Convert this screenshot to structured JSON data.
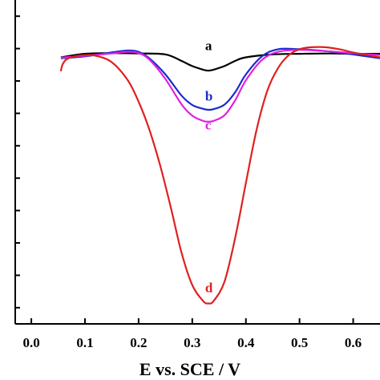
{
  "chart_data": {
    "type": "line",
    "xlabel": "E vs. SCE / V",
    "xlim": [
      -0.03,
      0.65
    ],
    "ylim": [
      0,
      1
    ],
    "x_ticks": [
      0.0,
      0.1,
      0.2,
      0.3,
      0.4,
      0.5,
      0.6
    ],
    "x_tick_labels": [
      "0.0",
      "0.1",
      "0.2",
      "0.3",
      "0.4",
      "0.5",
      "0.6"
    ],
    "y_ticks": [
      0.05,
      0.15,
      0.25,
      0.35,
      0.45,
      0.55,
      0.65,
      0.75,
      0.85,
      0.95
    ],
    "grid": false,
    "legend": "none",
    "series": [
      {
        "name": "a",
        "color": "#000000",
        "label_at": [
          0.33,
          0.845
        ],
        "x": [
          0.055,
          0.1,
          0.15,
          0.2,
          0.25,
          0.28,
          0.3,
          0.32,
          0.33,
          0.34,
          0.36,
          0.38,
          0.4,
          0.45,
          0.5,
          0.55,
          0.6,
          0.65
        ],
        "y": [
          0.823,
          0.834,
          0.836,
          0.835,
          0.832,
          0.812,
          0.796,
          0.785,
          0.782,
          0.785,
          0.796,
          0.812,
          0.823,
          0.832,
          0.834,
          0.835,
          0.834,
          0.834
        ]
      },
      {
        "name": "b",
        "color": "#1a2ad0",
        "label_at": [
          0.33,
          0.689
        ],
        "x": [
          0.055,
          0.1,
          0.15,
          0.18,
          0.2,
          0.22,
          0.25,
          0.28,
          0.3,
          0.32,
          0.33,
          0.34,
          0.36,
          0.38,
          0.4,
          0.43,
          0.46,
          0.5,
          0.55,
          0.6,
          0.65
        ],
        "y": [
          0.82,
          0.826,
          0.838,
          0.844,
          0.84,
          0.82,
          0.77,
          0.705,
          0.676,
          0.664,
          0.661,
          0.663,
          0.677,
          0.715,
          0.77,
          0.826,
          0.848,
          0.848,
          0.842,
          0.832,
          0.82
        ]
      },
      {
        "name": "c",
        "color": "#e020e0",
        "label_at": [
          0.33,
          0.6
        ],
        "x": [
          0.055,
          0.1,
          0.15,
          0.18,
          0.2,
          0.22,
          0.25,
          0.28,
          0.3,
          0.32,
          0.33,
          0.34,
          0.36,
          0.38,
          0.4,
          0.43,
          0.46,
          0.5,
          0.55,
          0.6,
          0.65
        ],
        "y": [
          0.822,
          0.828,
          0.835,
          0.84,
          0.836,
          0.816,
          0.756,
          0.678,
          0.643,
          0.627,
          0.624,
          0.627,
          0.644,
          0.69,
          0.752,
          0.815,
          0.84,
          0.846,
          0.842,
          0.836,
          0.83
        ]
      },
      {
        "name": "d",
        "color": "#e02020",
        "label_at": [
          0.33,
          0.098
        ],
        "x": [
          0.055,
          0.058,
          0.065,
          0.08,
          0.1,
          0.12,
          0.15,
          0.18,
          0.2,
          0.22,
          0.24,
          0.26,
          0.28,
          0.3,
          0.32,
          0.33,
          0.34,
          0.36,
          0.38,
          0.4,
          0.42,
          0.44,
          0.46,
          0.48,
          0.5,
          0.52,
          0.55,
          0.58,
          0.6,
          0.65
        ],
        "y": [
          0.78,
          0.8,
          0.816,
          0.826,
          0.83,
          0.828,
          0.808,
          0.752,
          0.686,
          0.6,
          0.49,
          0.36,
          0.22,
          0.12,
          0.071,
          0.063,
          0.071,
          0.13,
          0.265,
          0.435,
          0.6,
          0.72,
          0.79,
          0.83,
          0.848,
          0.854,
          0.854,
          0.846,
          0.838,
          0.823
        ]
      }
    ]
  }
}
